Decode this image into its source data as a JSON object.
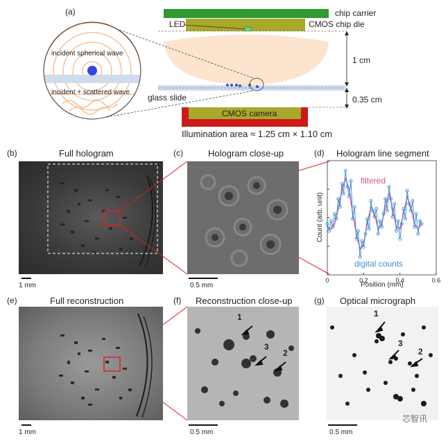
{
  "panel_a": {
    "label": "(a)",
    "chip_carrier": "chip carrier",
    "led": "LED",
    "cmos_die": "CMOS chip die",
    "incident_wave": "incident spherical wave",
    "incident_scattered": "incident + scattered wave",
    "glass_slide": "glass slide",
    "distance_top": "1 cm",
    "distance_bottom": "0.35 cm",
    "camera": "CMOS camera",
    "illum_area": "Illumination area ≈ 1.25 cm × 1.10 cm"
  },
  "panels": {
    "b": {
      "label": "(b)",
      "title": "Full hologram",
      "scale": "1 mm"
    },
    "c": {
      "label": "(c)",
      "title": "Hologram close-up",
      "scale": "0.5 mm"
    },
    "d": {
      "label": "(d)",
      "title": "Hologram line segment"
    },
    "e": {
      "label": "(e)",
      "title": "Full reconstruction",
      "scale": "1 mm"
    },
    "f": {
      "label": "(f)",
      "title": "Reconstruction close-up",
      "scale": "0.5 mm",
      "markers": [
        "1",
        "3",
        "2"
      ]
    },
    "g": {
      "label": "(g)",
      "title": "Optical micrograph",
      "scale": "0.5 mm",
      "markers": [
        "1",
        "3",
        "2"
      ]
    }
  },
  "chart_data": {
    "type": "line",
    "title": "Hologram line segment",
    "xlabel": "Position (mm)",
    "ylabel": "Count (arb. unit)",
    "xlim": [
      0,
      0.6
    ],
    "x_ticks": [
      "0",
      "0.2",
      "0.4",
      "0.6"
    ],
    "series": [
      {
        "name": "filtered",
        "color": "#d94f8c",
        "x": [
          0.0,
          0.02,
          0.04,
          0.06,
          0.08,
          0.1,
          0.12,
          0.14,
          0.16,
          0.18,
          0.2,
          0.22,
          0.24,
          0.26,
          0.28,
          0.3,
          0.32,
          0.34,
          0.36,
          0.38,
          0.4,
          0.42,
          0.44,
          0.46,
          0.48,
          0.5,
          0.52
        ],
        "y": [
          0.42,
          0.4,
          0.45,
          0.6,
          0.78,
          0.9,
          0.8,
          0.55,
          0.35,
          0.2,
          0.25,
          0.45,
          0.62,
          0.55,
          0.4,
          0.45,
          0.62,
          0.75,
          0.6,
          0.42,
          0.4,
          0.55,
          0.72,
          0.62,
          0.45,
          0.4,
          0.45
        ]
      },
      {
        "name": "digital counts",
        "color": "#3a8fd9",
        "x": [
          0.0,
          0.01,
          0.02,
          0.03,
          0.04,
          0.05,
          0.06,
          0.07,
          0.08,
          0.09,
          0.1,
          0.11,
          0.12,
          0.13,
          0.14,
          0.15,
          0.16,
          0.17,
          0.18,
          0.19,
          0.2,
          0.21,
          0.22,
          0.23,
          0.24,
          0.25,
          0.26,
          0.27,
          0.28,
          0.29,
          0.3,
          0.31,
          0.32,
          0.33,
          0.34,
          0.35,
          0.36,
          0.37,
          0.38,
          0.39,
          0.4,
          0.41,
          0.42,
          0.43,
          0.44,
          0.45,
          0.46,
          0.47,
          0.48,
          0.49,
          0.5,
          0.51,
          0.52
        ],
        "y": [
          0.45,
          0.38,
          0.48,
          0.42,
          0.55,
          0.5,
          0.7,
          0.62,
          0.85,
          0.75,
          0.98,
          0.82,
          0.72,
          0.88,
          0.5,
          0.62,
          0.3,
          0.38,
          0.12,
          0.28,
          0.22,
          0.35,
          0.5,
          0.4,
          0.68,
          0.58,
          0.52,
          0.6,
          0.35,
          0.48,
          0.42,
          0.55,
          0.7,
          0.58,
          0.82,
          0.7,
          0.52,
          0.65,
          0.38,
          0.48,
          0.3,
          0.45,
          0.6,
          0.5,
          0.78,
          0.65,
          0.58,
          0.68,
          0.42,
          0.55,
          0.35,
          0.48,
          0.45
        ]
      }
    ],
    "grid": false,
    "legend_placement": "inline"
  },
  "watermark": "芯智讯"
}
